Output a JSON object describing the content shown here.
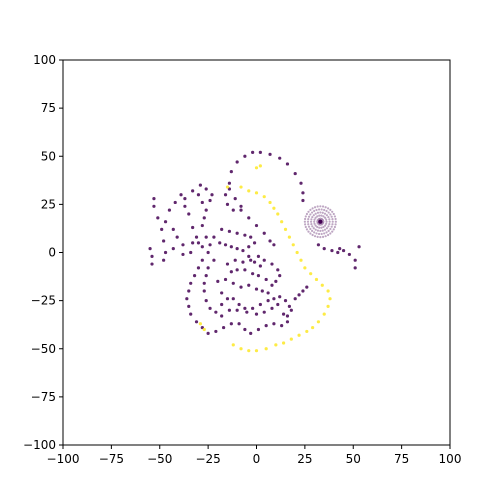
{
  "chart_data": {
    "type": "scatter",
    "title": "",
    "xlabel": "",
    "ylabel": "",
    "xlim": [
      -100,
      100
    ],
    "ylim": [
      -100,
      100
    ],
    "grid": false,
    "legend": "none",
    "x_ticks": [
      "−100",
      "−75",
      "−50",
      "−25",
      "0",
      "25",
      "50",
      "75",
      "100"
    ],
    "y_ticks": [
      "100",
      "75",
      "50",
      "25",
      "0",
      "−25",
      "−50",
      "−75",
      "−100"
    ],
    "colors": {
      "purple": "#440154",
      "yellow": "#fde725",
      "axis": "#000000"
    },
    "series": [
      {
        "color": "purple",
        "values": [
          [
            -13,
            42
          ],
          [
            -10,
            47
          ],
          [
            -6,
            50
          ],
          [
            -2,
            52
          ],
          [
            2,
            52
          ],
          [
            7,
            51
          ],
          [
            12,
            49
          ],
          [
            16,
            46
          ],
          [
            20,
            41
          ],
          [
            23,
            36
          ],
          [
            24,
            31
          ],
          [
            24,
            27
          ],
          [
            -14,
            36
          ],
          [
            -16,
            30
          ],
          [
            -15,
            25
          ],
          [
            -12,
            22
          ],
          [
            -8,
            22
          ],
          [
            -4,
            18
          ],
          [
            0,
            14
          ],
          [
            4,
            10
          ],
          [
            7,
            6
          ],
          [
            9,
            4
          ],
          [
            -8,
            24
          ],
          [
            -11,
            28
          ],
          [
            -14,
            33
          ],
          [
            -53,
            28
          ],
          [
            -53,
            24
          ],
          [
            -51,
            18
          ],
          [
            -49,
            12
          ],
          [
            -48,
            6
          ],
          [
            -47,
            0
          ],
          [
            -48,
            -4
          ],
          [
            -54,
            -6
          ],
          [
            -54,
            -2
          ],
          [
            -55,
            2
          ],
          [
            -47,
            16
          ],
          [
            -45,
            22
          ],
          [
            -42,
            26
          ],
          [
            -39,
            30
          ],
          [
            -37,
            24
          ],
          [
            -35,
            20
          ],
          [
            -33,
            13
          ],
          [
            -31,
            8
          ],
          [
            -33,
            5
          ],
          [
            -38,
            4
          ],
          [
            -41,
            8
          ],
          [
            -43,
            12
          ],
          [
            -37,
            28
          ],
          [
            -33,
            32
          ],
          [
            -30,
            30
          ],
          [
            -28,
            26
          ],
          [
            -26,
            22
          ],
          [
            -27,
            18
          ],
          [
            -28,
            14
          ],
          [
            -26,
            8
          ],
          [
            -24,
            4
          ],
          [
            -43,
            2
          ],
          [
            -38,
            -1
          ],
          [
            -34,
            0
          ],
          [
            -30,
            5
          ],
          [
            -26,
            33
          ],
          [
            -23,
            30
          ],
          [
            -24,
            27
          ],
          [
            -29,
            35
          ],
          [
            -28,
            3
          ],
          [
            -25,
            0
          ],
          [
            -28,
            -4
          ],
          [
            -30,
            -8
          ],
          [
            -32,
            -12
          ],
          [
            -34,
            -16
          ],
          [
            -35,
            -20
          ],
          [
            -36,
            -24
          ],
          [
            -35,
            -28
          ],
          [
            -34,
            -32
          ],
          [
            -31,
            -36
          ],
          [
            -28,
            -39
          ],
          [
            -25,
            -42
          ],
          [
            -21,
            -41
          ],
          [
            -17,
            -39
          ],
          [
            -13,
            -37
          ],
          [
            -9,
            -37
          ],
          [
            -6,
            -40
          ],
          [
            -3,
            -42
          ],
          [
            1,
            -40
          ],
          [
            5,
            -38
          ],
          [
            9,
            -37
          ],
          [
            13,
            -38
          ],
          [
            16,
            -36
          ],
          [
            -22,
            8
          ],
          [
            -19,
            5
          ],
          [
            -16,
            4
          ],
          [
            -13,
            3
          ],
          [
            -10,
            2
          ],
          [
            -7,
            1
          ],
          [
            -4,
            -2
          ],
          [
            -1,
            -5
          ],
          [
            2,
            -7
          ],
          [
            -22,
            -4
          ],
          [
            -25,
            -8
          ],
          [
            -26,
            -12
          ],
          [
            -27,
            -16
          ],
          [
            -27,
            -20
          ],
          [
            -26,
            -25
          ],
          [
            -24,
            -29
          ],
          [
            -21,
            -31
          ],
          [
            -18,
            -33
          ],
          [
            -20,
            -15
          ],
          [
            -16,
            -14
          ],
          [
            -13,
            -10
          ],
          [
            -10,
            -9
          ],
          [
            -6,
            -9
          ],
          [
            -2,
            -11
          ],
          [
            1,
            -12
          ],
          [
            5,
            -14
          ],
          [
            8,
            -17
          ],
          [
            -18,
            -21
          ],
          [
            -15,
            -24
          ],
          [
            -12,
            -24
          ],
          [
            -9,
            -27
          ],
          [
            -6,
            -29
          ],
          [
            -2,
            -29
          ],
          [
            2,
            -27
          ],
          [
            6,
            -25
          ],
          [
            9,
            -24
          ],
          [
            12,
            -23
          ],
          [
            -18,
            -27
          ],
          [
            -14,
            -30
          ],
          [
            -10,
            -30
          ],
          [
            -5,
            -31
          ],
          [
            0,
            -32
          ],
          [
            4,
            -31
          ],
          [
            8,
            -29
          ],
          [
            11,
            -27
          ],
          [
            -12,
            -16
          ],
          [
            -8,
            -18
          ],
          [
            -4,
            -17
          ],
          [
            0,
            -19
          ],
          [
            3,
            -20
          ],
          [
            6,
            -21
          ],
          [
            15,
            -25
          ],
          [
            17,
            -28
          ],
          [
            20,
            -24
          ],
          [
            22,
            -22
          ],
          [
            24,
            -20
          ],
          [
            26,
            -18
          ],
          [
            14,
            -32
          ],
          [
            16,
            -33
          ],
          [
            18,
            -30
          ],
          [
            -15,
            -6
          ],
          [
            -11,
            -4
          ],
          [
            -7,
            -5
          ],
          [
            -3,
            -4
          ],
          [
            1,
            -2
          ],
          [
            4,
            -4
          ],
          [
            8,
            -6
          ],
          [
            11,
            -9
          ],
          [
            12,
            -12
          ],
          [
            10,
            -15
          ],
          [
            -18,
            12
          ],
          [
            -14,
            11
          ],
          [
            -10,
            10
          ],
          [
            -6,
            9
          ],
          [
            -3,
            8
          ],
          [
            -1,
            5
          ],
          [
            -4,
            3
          ],
          [
            32,
            4
          ],
          [
            35,
            2
          ],
          [
            39,
            1
          ],
          [
            42,
            0
          ],
          [
            45,
            1
          ],
          [
            48,
            -1
          ],
          [
            51,
            -4
          ],
          [
            53,
            3
          ],
          [
            51,
            -8
          ],
          [
            43,
            2
          ]
        ]
      },
      {
        "color": "yellow",
        "values": [
          [
            -15,
            34
          ],
          [
            -8,
            34
          ],
          [
            -4,
            32
          ],
          [
            0,
            31
          ],
          [
            4,
            29
          ],
          [
            7,
            26
          ],
          [
            9,
            23
          ],
          [
            11,
            20
          ],
          [
            13,
            16
          ],
          [
            15,
            12
          ],
          [
            17,
            8
          ],
          [
            19,
            4
          ],
          [
            21,
            0
          ],
          [
            23,
            -4
          ],
          [
            25,
            -8
          ],
          [
            28,
            -11
          ],
          [
            31,
            -14
          ],
          [
            34,
            -17
          ],
          [
            37,
            -20
          ],
          [
            38,
            -24
          ],
          [
            37,
            -28
          ],
          [
            35,
            -32
          ],
          [
            32,
            -36
          ],
          [
            29,
            -39
          ],
          [
            26,
            -41
          ],
          [
            22,
            -43
          ],
          [
            18,
            -45
          ],
          [
            14,
            -47
          ],
          [
            10,
            -48
          ],
          [
            5,
            -50
          ],
          [
            0,
            -51
          ],
          [
            -4,
            -51
          ],
          [
            -8,
            -50
          ],
          [
            -12,
            -48
          ],
          [
            0,
            44
          ],
          [
            2,
            45
          ],
          [
            -27,
            -40
          ],
          [
            -29,
            -37
          ]
        ]
      }
    ],
    "ring_cluster": {
      "color": "purple",
      "center": [
        33,
        16
      ],
      "radius": 8
    }
  }
}
